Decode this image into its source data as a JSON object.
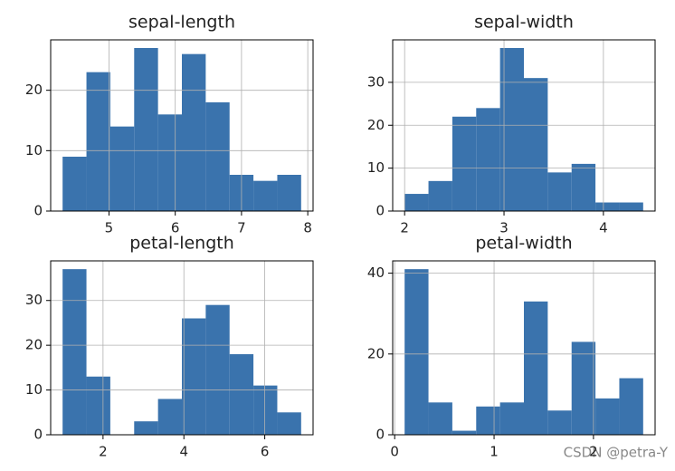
{
  "chart_data": [
    {
      "type": "histogram",
      "title": "sepal-length",
      "bins": [
        4.3,
        4.66,
        5.02,
        5.38,
        5.74,
        6.1,
        6.46,
        6.82,
        7.18,
        7.54,
        7.9
      ],
      "values": [
        9,
        23,
        14,
        27,
        16,
        26,
        18,
        6,
        5,
        6
      ],
      "color": "#3a73ad",
      "xlim": [
        4.12,
        8.08
      ],
      "xticks": [
        5,
        6,
        7,
        8
      ],
      "ylim": [
        0,
        28.35
      ],
      "yticks": [
        0,
        10,
        20
      ],
      "grid": true
    },
    {
      "type": "histogram",
      "title": "sepal-width",
      "bins": [
        2.0,
        2.24,
        2.48,
        2.72,
        2.96,
        3.2,
        3.44,
        3.68,
        3.92,
        4.16,
        4.4
      ],
      "values": [
        4,
        7,
        22,
        24,
        38,
        31,
        9,
        11,
        2,
        2
      ],
      "color": "#3a73ad",
      "xlim": [
        1.88,
        4.52
      ],
      "xticks": [
        2,
        3,
        4
      ],
      "ylim": [
        0,
        39.9
      ],
      "yticks": [
        0,
        10,
        20,
        30
      ],
      "grid": true
    },
    {
      "type": "histogram",
      "title": "petal-length",
      "bins": [
        1.0,
        1.59,
        2.18,
        2.77,
        3.36,
        3.95,
        4.54,
        5.13,
        5.72,
        6.31,
        6.9
      ],
      "values": [
        37,
        13,
        0,
        3,
        8,
        26,
        29,
        18,
        11,
        5
      ],
      "color": "#3a73ad",
      "xlim": [
        0.705,
        7.195
      ],
      "xticks": [
        2,
        4,
        6
      ],
      "ylim": [
        0,
        38.85
      ],
      "yticks": [
        0,
        10,
        20,
        30
      ],
      "grid": true
    },
    {
      "type": "histogram",
      "title": "petal-width",
      "bins": [
        0.1,
        0.34,
        0.58,
        0.82,
        1.06,
        1.3,
        1.54,
        1.78,
        2.02,
        2.26,
        2.5
      ],
      "values": [
        41,
        8,
        1,
        7,
        8,
        33,
        6,
        23,
        9,
        14
      ],
      "color": "#3a73ad",
      "xlim": [
        -0.02,
        2.62
      ],
      "xticks": [
        0,
        1,
        2
      ],
      "ylim": [
        0,
        43.05
      ],
      "yticks": [
        0,
        20,
        40
      ],
      "grid": true
    }
  ],
  "watermark": "CSDN @petra-Y"
}
